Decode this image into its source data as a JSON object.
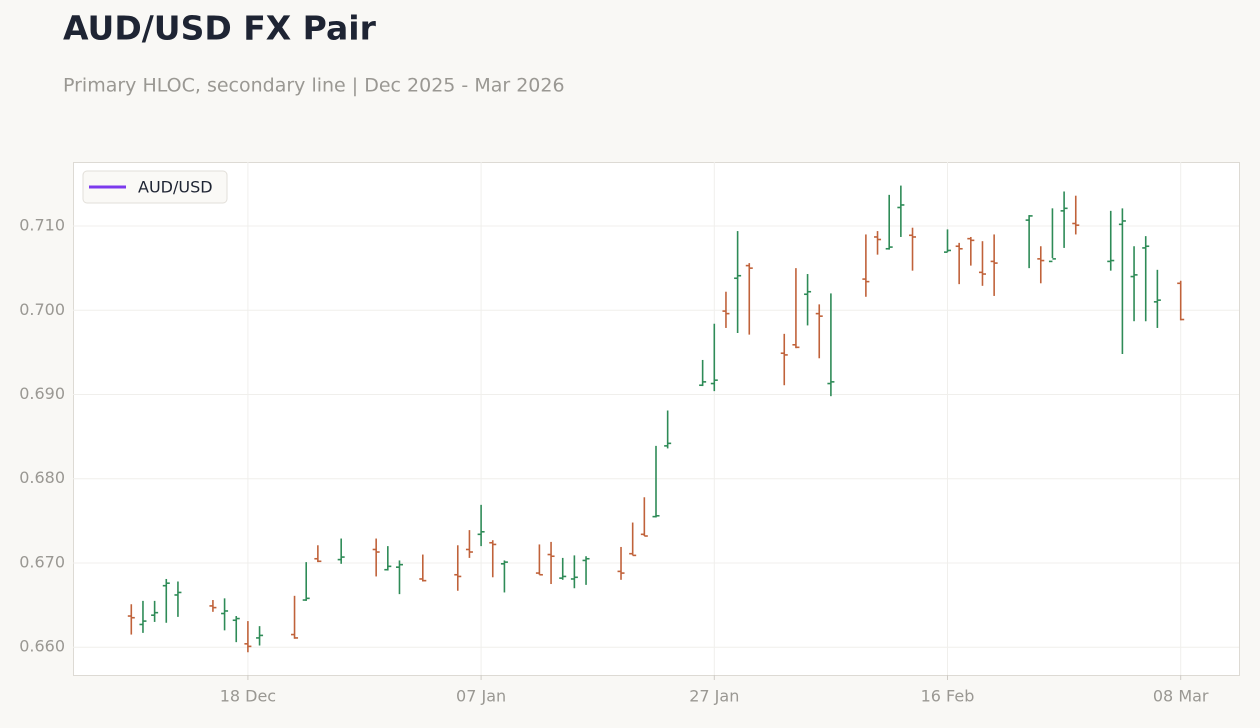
{
  "chart_data": {
    "type": "ohlc",
    "title": "AUD/USD FX Pair",
    "subtitle": "Primary HLOC, secondary line | Dec 2025 - Mar 2026",
    "x": [
      "2025-12-08",
      "2025-12-09",
      "2025-12-10",
      "2025-12-11",
      "2025-12-12",
      "2025-12-15",
      "2025-12-16",
      "2025-12-17",
      "2025-12-18",
      "2025-12-19",
      "2025-12-22",
      "2025-12-23",
      "2025-12-24",
      "2025-12-26",
      "2025-12-29",
      "2025-12-30",
      "2025-12-31",
      "2026-01-02",
      "2026-01-05",
      "2026-01-06",
      "2026-01-07",
      "2026-01-08",
      "2026-01-09",
      "2026-01-12",
      "2026-01-13",
      "2026-01-14",
      "2026-01-15",
      "2026-01-16",
      "2026-01-19",
      "2026-01-20",
      "2026-01-21",
      "2026-01-22",
      "2026-01-23",
      "2026-01-26",
      "2026-01-27",
      "2026-01-28",
      "2026-01-29",
      "2026-01-30",
      "2026-02-02",
      "2026-02-03",
      "2026-02-04",
      "2026-02-05",
      "2026-02-06",
      "2026-02-09",
      "2026-02-10",
      "2026-02-11",
      "2026-02-12",
      "2026-02-13",
      "2026-02-16",
      "2026-02-17",
      "2026-02-18",
      "2026-02-19",
      "2026-02-20",
      "2026-02-23",
      "2026-02-24",
      "2026-02-25",
      "2026-02-26",
      "2026-02-27",
      "2026-03-02",
      "2026-03-03",
      "2026-03-04",
      "2026-03-05",
      "2026-03-06",
      "2026-03-08"
    ],
    "series": [
      {
        "name": "AUD/USD",
        "color": "#7c3aed",
        "up_color": "#2e8b57",
        "down_color": "#c0623a",
        "open": [
          0.6637,
          0.6627,
          0.6638,
          0.6673,
          0.6662,
          0.6649,
          0.664,
          0.6632,
          0.6604,
          0.6611,
          0.6615,
          0.6656,
          0.6705,
          0.6704,
          0.6716,
          0.6692,
          0.6695,
          0.6681,
          0.6686,
          0.6716,
          0.6734,
          0.6724,
          0.6699,
          0.6688,
          0.671,
          0.6682,
          0.6681,
          0.6703,
          0.669,
          0.6711,
          0.6734,
          0.6755,
          0.6839,
          0.6911,
          0.6913,
          0.6999,
          0.7038,
          0.7053,
          0.6949,
          0.6959,
          0.7019,
          0.6996,
          0.6913,
          0.7037,
          0.7087,
          0.7073,
          0.7122,
          0.7089,
          0.7069,
          0.7076,
          0.7085,
          0.7045,
          0.7058,
          0.7107,
          0.7061,
          0.7058,
          0.7118,
          0.7103,
          0.7058,
          0.7102,
          0.704,
          0.7074,
          0.701,
          0.7032
        ],
        "high": [
          0.6651,
          0.6655,
          0.6655,
          0.6681,
          0.6678,
          0.6656,
          0.6658,
          0.6637,
          0.6631,
          0.6625,
          0.6661,
          0.6701,
          0.6721,
          0.6729,
          0.6729,
          0.672,
          0.6703,
          0.671,
          0.6721,
          0.6739,
          0.6769,
          0.6727,
          0.6703,
          0.6722,
          0.6725,
          0.6706,
          0.6709,
          0.6708,
          0.6719,
          0.6748,
          0.6778,
          0.6839,
          0.6881,
          0.6941,
          0.6984,
          0.7022,
          0.7094,
          0.7056,
          0.6972,
          0.705,
          0.7043,
          0.7007,
          0.702,
          0.709,
          0.7094,
          0.7137,
          0.7148,
          0.7098,
          0.7096,
          0.708,
          0.7087,
          0.7082,
          0.709,
          0.7113,
          0.7076,
          0.7121,
          0.7141,
          0.7136,
          0.7118,
          0.7121,
          0.7076,
          0.7088,
          0.7048,
          0.7035
        ],
        "low": [
          0.6615,
          0.6617,
          0.663,
          0.6629,
          0.6636,
          0.6642,
          0.662,
          0.6606,
          0.6594,
          0.6602,
          0.661,
          0.6655,
          0.6701,
          0.6699,
          0.6684,
          0.6691,
          0.6663,
          0.6678,
          0.6667,
          0.6706,
          0.672,
          0.6683,
          0.6665,
          0.6686,
          0.6675,
          0.668,
          0.667,
          0.6674,
          0.668,
          0.6709,
          0.6732,
          0.6754,
          0.6836,
          0.691,
          0.6904,
          0.6979,
          0.6973,
          0.6971,
          0.6911,
          0.6955,
          0.6982,
          0.6943,
          0.6898,
          0.7016,
          0.7066,
          0.7072,
          0.7087,
          0.7047,
          0.7069,
          0.7031,
          0.7053,
          0.7029,
          0.7017,
          0.705,
          0.7032,
          0.7062,
          0.7074,
          0.709,
          0.7047,
          0.6948,
          0.6987,
          0.6987,
          0.6979,
          0.6988
        ],
        "close": [
          0.6635,
          0.6631,
          0.6641,
          0.6676,
          0.6665,
          0.6647,
          0.6643,
          0.6634,
          0.6601,
          0.6614,
          0.6611,
          0.6658,
          0.6702,
          0.6707,
          0.6713,
          0.6696,
          0.6698,
          0.6679,
          0.6684,
          0.6713,
          0.6737,
          0.6722,
          0.6701,
          0.6686,
          0.6708,
          0.6684,
          0.6683,
          0.6705,
          0.6688,
          0.6709,
          0.6732,
          0.6756,
          0.6842,
          0.6915,
          0.6917,
          0.6996,
          0.7041,
          0.705,
          0.6947,
          0.6956,
          0.7022,
          0.6993,
          0.6915,
          0.7034,
          0.7084,
          0.7075,
          0.7125,
          0.7087,
          0.7071,
          0.7073,
          0.7083,
          0.7043,
          0.7056,
          0.7112,
          0.7059,
          0.7061,
          0.7121,
          0.7101,
          0.7059,
          0.7106,
          0.7042,
          0.7076,
          0.7012,
          0.6989
        ]
      }
    ],
    "xlim": [
      "2025-12-03",
      "2026-03-13"
    ],
    "xticks": [
      {
        "value": "2025-12-18",
        "label": "18 Dec"
      },
      {
        "value": "2026-01-07",
        "label": "07 Jan"
      },
      {
        "value": "2026-01-27",
        "label": "27 Jan"
      },
      {
        "value": "2026-02-16",
        "label": "16 Feb"
      },
      {
        "value": "2026-03-08",
        "label": "08 Mar"
      }
    ],
    "ylim": [
      0.6567,
      0.7176
    ],
    "yticks": [
      {
        "value": 0.66,
        "label": "0.660"
      },
      {
        "value": 0.67,
        "label": "0.670"
      },
      {
        "value": 0.68,
        "label": "0.680"
      },
      {
        "value": 0.69,
        "label": "0.690"
      },
      {
        "value": 0.7,
        "label": "0.700"
      },
      {
        "value": 0.71,
        "label": "0.710"
      }
    ],
    "grid": true,
    "legend": "upper-left"
  }
}
